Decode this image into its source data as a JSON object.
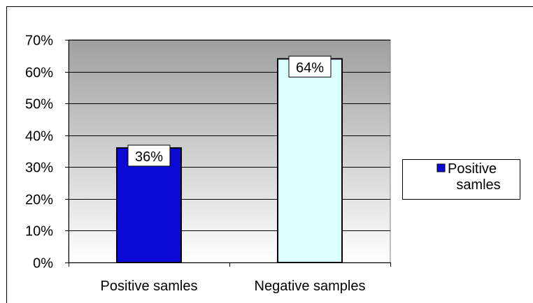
{
  "chart_data": {
    "type": "bar",
    "categories": [
      "Positive samles",
      "Negative samples"
    ],
    "values": [
      36,
      64
    ],
    "data_labels": [
      "36%",
      "64%"
    ],
    "bar_colors": [
      "#0a0ad4",
      "#dcffff"
    ],
    "ylim": [
      0,
      70
    ],
    "yticks": [
      0,
      10,
      20,
      30,
      40,
      50,
      60,
      70
    ],
    "ytick_labels": [
      "0%",
      "10%",
      "20%",
      "30%",
      "40%",
      "50%",
      "60%",
      "70%"
    ],
    "grid": true,
    "legend": {
      "position": "right",
      "entries": [
        {
          "lines": [
            "Positive",
            "samles"
          ],
          "color": "#0a0ad4"
        }
      ]
    },
    "plot_background": {
      "top": "#9f9f9f",
      "bottom": "#ffffff"
    }
  }
}
